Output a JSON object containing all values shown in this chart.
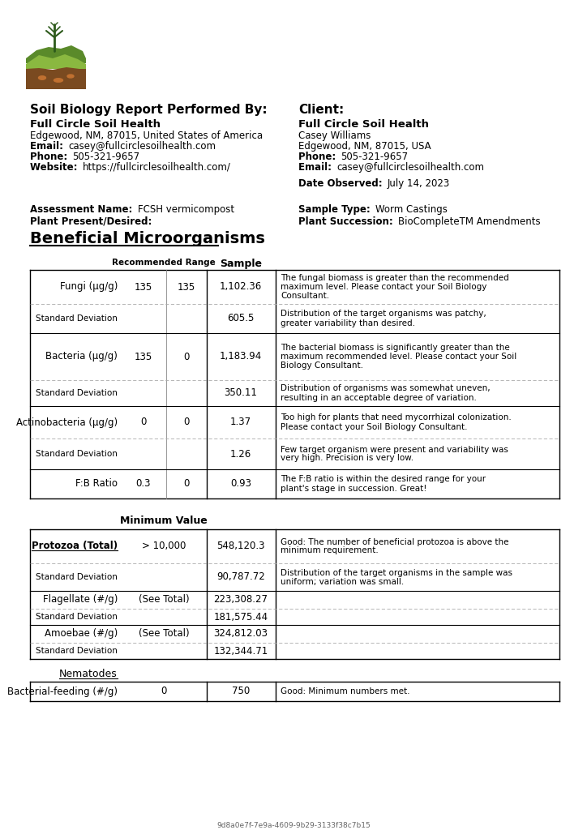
{
  "page_bg": "#ffffff",
  "header_left_title": "Soil Biology Report Performed By:",
  "header_left_org": "Full Circle Soil Health",
  "header_left_addr": "Edgewood, NM, 87015, United States of America",
  "header_left_email_label": "Email:",
  "header_left_email": "casey@fullcirclesoilhealth.com",
  "header_left_phone_label": "Phone:",
  "header_left_phone": "505-321-9657",
  "header_left_web_label": "Website:",
  "header_left_web": "https://fullcirclesoilhealth.com/",
  "header_right_title": "Client:",
  "header_right_org": "Full Circle Soil Health",
  "header_right_name": "Casey Williams",
  "header_right_addr": "Edgewood, NM, 87015, USA",
  "header_right_phone_label": "Phone:",
  "header_right_phone": "505-321-9657",
  "header_right_email_label": "Email:",
  "header_right_email": "casey@fullcirclesoilhealth.com",
  "header_right_date_label": "Date Observed:",
  "header_right_date": "July 14, 2023",
  "assess_label": "Assessment Name:",
  "assess_value": "FCSH vermicompost",
  "plant_label": "Plant Present/Desired:",
  "plant_value": "",
  "sample_label": "Sample Type:",
  "sample_value": "Worm Castings",
  "succession_label": "Plant Succession:",
  "succession_value": "BioCompleteTM Amendments",
  "section1_title": "Beneficial Microorganisms",
  "col_rec_header": "Recommended Range",
  "col_sample_header": "Sample",
  "table1_rows": [
    {
      "label": "Fungi (μg/g)",
      "v1": "135",
      "v2": "135",
      "sample": "1,102.36",
      "comment": "The fungal biomass is greater than the recommended maximum level. Please contact your Soil Biology Consultant.",
      "is_main": true,
      "separator": "solid"
    },
    {
      "label": "Standard Deviation",
      "v1": "",
      "v2": "",
      "sample": "605.5",
      "comment": "Distribution of the target organisms was patchy, greater variability than desired.",
      "is_main": false,
      "separator": "dashed"
    },
    {
      "label": "Bacteria (μg/g)",
      "v1": "135",
      "v2": "0",
      "sample": "1,183.94",
      "comment": "The bacterial biomass is significantly greater than the maximum recommended level. Please contact your Soil Biology Consultant.",
      "is_main": true,
      "separator": "solid"
    },
    {
      "label": "Standard Deviation",
      "v1": "",
      "v2": "",
      "sample": "350.11",
      "comment": "Distribution of organisms was somewhat uneven, resulting in an acceptable degree of variation.",
      "is_main": false,
      "separator": "dashed"
    },
    {
      "label": "Actinobacteria (μg/g)",
      "v1": "0",
      "v2": "0",
      "sample": "1.37",
      "comment": "Too high for plants that need mycorrhizal colonization. Please contact your Soil Biology Consultant.",
      "is_main": true,
      "separator": "solid"
    },
    {
      "label": "Standard Deviation",
      "v1": "",
      "v2": "",
      "sample": "1.26",
      "comment": "Few target organism were present and variability was very high. Precision is very low.",
      "is_main": false,
      "separator": "dashed"
    },
    {
      "label": "F:B Ratio",
      "v1": "0.3",
      "v2": "0",
      "sample": "0.93",
      "comment": "The F:B ratio is within the desired range for your plant's stage in succession. Great!",
      "is_main": true,
      "separator": "solid"
    }
  ],
  "col_min_header": "Minimum Value",
  "table2_rows": [
    {
      "label": "Protozoa (Total)",
      "label_bold": true,
      "label_underline": true,
      "min_val": "> 10,000",
      "sample": "548,120.3",
      "comment": "Good: The number of beneficial protozoa is above the minimum requirement.",
      "is_main": true,
      "separator": "solid"
    },
    {
      "label": "Standard Deviation",
      "label_bold": false,
      "label_underline": false,
      "min_val": "",
      "sample": "90,787.72",
      "comment": "Distribution of the target organisms in the sample was uniform; variation was small.",
      "is_main": false,
      "separator": "dashed"
    },
    {
      "label": "Flagellate (#/g)",
      "label_bold": false,
      "label_underline": false,
      "min_val": "(See Total)",
      "sample": "223,308.27",
      "comment": "",
      "is_main": true,
      "separator": "solid"
    },
    {
      "label": "Standard Deviation",
      "label_bold": false,
      "label_underline": false,
      "min_val": "",
      "sample": "181,575.44",
      "comment": "",
      "is_main": false,
      "separator": "dashed"
    },
    {
      "label": "Amoebae (#/g)",
      "label_bold": false,
      "label_underline": false,
      "min_val": "(See Total)",
      "sample": "324,812.03",
      "comment": "",
      "is_main": true,
      "separator": "solid"
    },
    {
      "label": "Standard Deviation",
      "label_bold": false,
      "label_underline": false,
      "min_val": "",
      "sample": "132,344.71",
      "comment": "",
      "is_main": false,
      "separator": "dashed"
    }
  ],
  "nematodes_label": "Nematodes",
  "table3_rows": [
    {
      "label": "Bacterial-feeding (#/g)",
      "min_val": "0",
      "sample": "750",
      "comment": "Good: Minimum numbers met.",
      "is_main": true
    }
  ],
  "footer_id": "9d8a0e7f-7e9a-4609-9b29-3133f38c7b15"
}
